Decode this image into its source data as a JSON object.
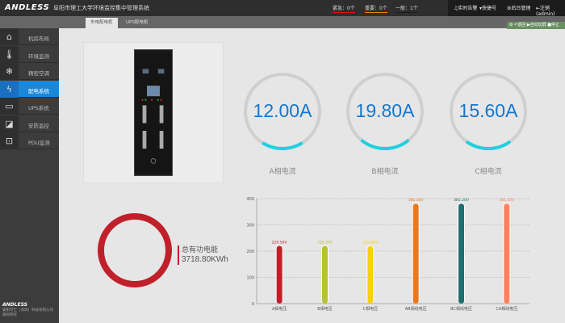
{
  "header": {
    "logo": "ANDLESS",
    "title": "阜阳市理工大学环境监控集中管理系统",
    "alarms": [
      {
        "label": "紧急：0个",
        "color": "#e01010"
      },
      {
        "label": "重要：0个",
        "color": "#f08010"
      },
      {
        "label": "一般：1个",
        "color": "#1c1c1c"
      }
    ],
    "menu": [
      "♫实时告警",
      "▾快捷号",
      "⚙后台管理",
      "⇤注销(admin)"
    ]
  },
  "tabs": [
    {
      "label": "市电配电柜",
      "active": true
    },
    {
      "label": "UPS配电柜",
      "active": false
    }
  ],
  "ops": "⚙ ↶返回 ▶自动切屏 ■停止",
  "sidebar": {
    "items": [
      {
        "label": "机房布局",
        "icon": "home-icon",
        "glyph": "⌂"
      },
      {
        "label": "环境监测",
        "icon": "thermometer-icon",
        "glyph": "🌡"
      },
      {
        "label": "精密空调",
        "icon": "snowflake-icon",
        "glyph": "❄"
      },
      {
        "label": "配电系统",
        "icon": "lightning-icon",
        "glyph": "ϟ",
        "active": true
      },
      {
        "label": "UPS系统",
        "icon": "battery-icon",
        "glyph": "▭"
      },
      {
        "label": "安防监控",
        "icon": "camera-icon",
        "glyph": "◪"
      },
      {
        "label": "PDU监测",
        "icon": "socket-icon",
        "glyph": "⊡"
      }
    ],
    "footer_logo": "ANDLESS",
    "footer_line1": "安耐可士（深圳）科技有限公司",
    "footer_line2": "版权所有"
  },
  "currents": [
    {
      "value": "12.00A",
      "label": "A相电流",
      "fraction": 0.12
    },
    {
      "value": "19.80A",
      "label": "B相电流",
      "fraction": 0.2
    },
    {
      "value": "15.60A",
      "label": "C相电流",
      "fraction": 0.16
    }
  ],
  "energy": {
    "label": "总有功电能",
    "value": "3718.80KWh",
    "color": "#c0202a"
  },
  "chart_data": {
    "type": "bar",
    "categories": [
      "A相电压",
      "B相电压",
      "C相电压",
      "AB相线电压",
      "BC相线电压",
      "CA相线电压"
    ],
    "values": [
      220.5,
      220.3,
      219.8,
      381.3,
      381.2,
      381.3
    ],
    "labels": [
      "220.50V",
      "220.30V",
      "219.80V",
      "381.30V",
      "381.20V",
      "381.30V"
    ],
    "colors": [
      "#c0202a",
      "#b5c232",
      "#f7d10a",
      "#e87a1e",
      "#1f6e70",
      "#ff8060"
    ],
    "ylim": [
      0,
      400
    ],
    "yticks": [
      0,
      100,
      200,
      300,
      400
    ],
    "grid": true
  }
}
